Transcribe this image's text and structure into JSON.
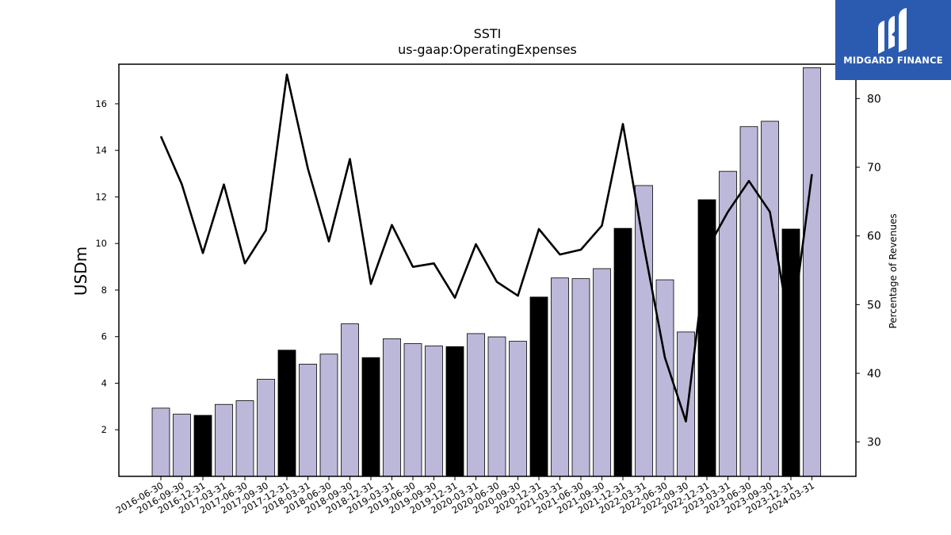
{
  "chart_data": {
    "type": "bar",
    "title": "SSTI",
    "subtitle": "us-gaap:OperatingExpenses",
    "ylabel": "USDm",
    "y2label": "Percentage of Revenues",
    "ylim": [
      0,
      17.7
    ],
    "y2lim": [
      25,
      85
    ],
    "yticks": [
      2,
      4,
      6,
      8,
      10,
      12,
      14,
      16
    ],
    "y2ticks": [
      30,
      40,
      50,
      60,
      70,
      80
    ],
    "categories": [
      "2016-06-30",
      "2016-09-30",
      "2016-12-31",
      "2017-03-31",
      "2017-06-30",
      "2017-09-30",
      "2017-12-31",
      "2018-03-31",
      "2018-06-30",
      "2018-09-30",
      "2018-12-31",
      "2019-03-31",
      "2019-06-30",
      "2019-09-30",
      "2019-12-31",
      "2020-03-31",
      "2020-06-30",
      "2020-09-30",
      "2020-12-31",
      "2021-03-31",
      "2021-06-30",
      "2021-09-30",
      "2021-12-31",
      "2022-03-31",
      "2022-06-30",
      "2022-09-30",
      "2022-12-31",
      "2023-03-31",
      "2023-06-30",
      "2023-09-30",
      "2023-12-31",
      "2024-03-31"
    ],
    "series": [
      {
        "type": "bar",
        "values": [
          2.93,
          2.67,
          2.62,
          3.09,
          3.25,
          4.17,
          5.42,
          4.82,
          5.25,
          6.55,
          5.1,
          5.91,
          5.7,
          5.6,
          5.57,
          6.13,
          5.99,
          5.8,
          7.7,
          8.52,
          8.49,
          8.92,
          10.65,
          12.49,
          8.44,
          6.2,
          11.88,
          13.1,
          15.02,
          15.25,
          10.62,
          17.55
        ],
        "highlight": [
          false,
          false,
          true,
          false,
          false,
          false,
          true,
          false,
          false,
          false,
          true,
          false,
          false,
          false,
          true,
          false,
          false,
          false,
          true,
          false,
          false,
          false,
          true,
          false,
          false,
          false,
          true,
          false,
          false,
          false,
          true,
          false
        ]
      },
      {
        "type": "line",
        "values": [
          74.5,
          67.5,
          57.5,
          67.5,
          56.0,
          60.8,
          83.5,
          69.8,
          59.2,
          71.2,
          53.0,
          61.6,
          55.5,
          56.0,
          51.0,
          58.8,
          53.3,
          51.3,
          61.0,
          57.3,
          58.0,
          61.5,
          76.3,
          58.5,
          42.3,
          33.0,
          58.0,
          63.5,
          68.0,
          63.5,
          45.5,
          69.0
        ]
      }
    ],
    "colors": {
      "bar": "#bcb8d9",
      "bar_highlight": "#000000",
      "line": "#000000"
    },
    "grid": false
  },
  "logo": {
    "text": "MIDGARD FINANCE",
    "background": "#2b5bb0"
  }
}
